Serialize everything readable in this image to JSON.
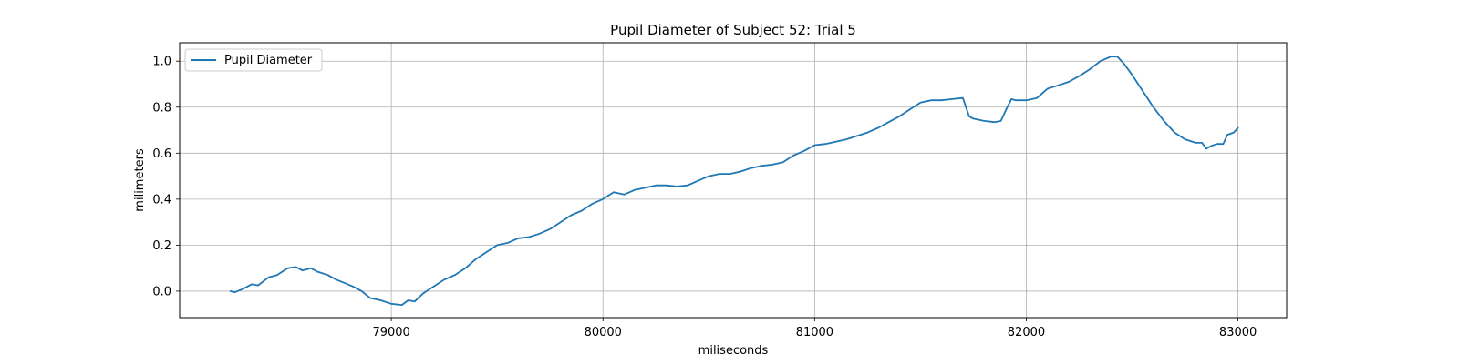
{
  "chart_data": {
    "type": "line",
    "title": "Pupil Diameter of Subject 52: Trial 5",
    "xlabel": "miliseconds",
    "ylabel": "milimeters",
    "xlim": [
      78000,
      83230
    ],
    "ylim": [
      -0.115,
      1.08
    ],
    "xticks": [
      79000,
      80000,
      81000,
      82000,
      83000
    ],
    "yticks": [
      0.0,
      0.2,
      0.4,
      0.6,
      0.8,
      1.0
    ],
    "xtick_labels": [
      "79000",
      "80000",
      "81000",
      "82000",
      "83000"
    ],
    "ytick_labels": [
      "0.0",
      "0.2",
      "0.4",
      "0.6",
      "0.8",
      "1.0"
    ],
    "grid": true,
    "legend": "upper-left",
    "color": "#1f77b4",
    "series": [
      {
        "name": "Pupil Diameter",
        "points": [
          [
            78240,
            0.0
          ],
          [
            78260,
            -0.005
          ],
          [
            78300,
            0.01
          ],
          [
            78340,
            0.03
          ],
          [
            78370,
            0.025
          ],
          [
            78420,
            0.06
          ],
          [
            78460,
            0.07
          ],
          [
            78510,
            0.1
          ],
          [
            78550,
            0.105
          ],
          [
            78580,
            0.09
          ],
          [
            78620,
            0.1
          ],
          [
            78650,
            0.085
          ],
          [
            78700,
            0.07
          ],
          [
            78740,
            0.05
          ],
          [
            78780,
            0.035
          ],
          [
            78820,
            0.02
          ],
          [
            78860,
            0.0
          ],
          [
            78900,
            -0.03
          ],
          [
            78950,
            -0.04
          ],
          [
            79000,
            -0.055
          ],
          [
            79050,
            -0.06
          ],
          [
            79080,
            -0.04
          ],
          [
            79110,
            -0.045
          ],
          [
            79150,
            -0.01
          ],
          [
            79200,
            0.02
          ],
          [
            79250,
            0.05
          ],
          [
            79300,
            0.07
          ],
          [
            79350,
            0.1
          ],
          [
            79400,
            0.14
          ],
          [
            79450,
            0.17
          ],
          [
            79500,
            0.2
          ],
          [
            79550,
            0.21
          ],
          [
            79600,
            0.23
          ],
          [
            79650,
            0.235
          ],
          [
            79700,
            0.25
          ],
          [
            79750,
            0.27
          ],
          [
            79800,
            0.3
          ],
          [
            79850,
            0.33
          ],
          [
            79900,
            0.35
          ],
          [
            79950,
            0.38
          ],
          [
            80000,
            0.4
          ],
          [
            80050,
            0.43
          ],
          [
            80100,
            0.42
          ],
          [
            80150,
            0.44
          ],
          [
            80200,
            0.45
          ],
          [
            80250,
            0.46
          ],
          [
            80300,
            0.46
          ],
          [
            80350,
            0.455
          ],
          [
            80400,
            0.46
          ],
          [
            80450,
            0.48
          ],
          [
            80500,
            0.5
          ],
          [
            80550,
            0.51
          ],
          [
            80600,
            0.51
          ],
          [
            80650,
            0.52
          ],
          [
            80700,
            0.535
          ],
          [
            80750,
            0.545
          ],
          [
            80800,
            0.55
          ],
          [
            80850,
            0.56
          ],
          [
            80900,
            0.59
          ],
          [
            80950,
            0.61
          ],
          [
            81000,
            0.635
          ],
          [
            81050,
            0.64
          ],
          [
            81100,
            0.65
          ],
          [
            81150,
            0.66
          ],
          [
            81200,
            0.675
          ],
          [
            81250,
            0.69
          ],
          [
            81300,
            0.71
          ],
          [
            81350,
            0.735
          ],
          [
            81400,
            0.76
          ],
          [
            81450,
            0.79
          ],
          [
            81500,
            0.82
          ],
          [
            81550,
            0.83
          ],
          [
            81600,
            0.83
          ],
          [
            81650,
            0.835
          ],
          [
            81700,
            0.84
          ],
          [
            81730,
            0.76
          ],
          [
            81750,
            0.75
          ],
          [
            81800,
            0.74
          ],
          [
            81850,
            0.735
          ],
          [
            81880,
            0.74
          ],
          [
            81910,
            0.8
          ],
          [
            81930,
            0.835
          ],
          [
            81950,
            0.83
          ],
          [
            82000,
            0.83
          ],
          [
            82050,
            0.84
          ],
          [
            82100,
            0.88
          ],
          [
            82150,
            0.895
          ],
          [
            82200,
            0.91
          ],
          [
            82250,
            0.935
          ],
          [
            82300,
            0.965
          ],
          [
            82350,
            1.0
          ],
          [
            82400,
            1.02
          ],
          [
            82430,
            1.02
          ],
          [
            82460,
            0.99
          ],
          [
            82500,
            0.94
          ],
          [
            82550,
            0.87
          ],
          [
            82600,
            0.8
          ],
          [
            82650,
            0.74
          ],
          [
            82700,
            0.69
          ],
          [
            82750,
            0.66
          ],
          [
            82800,
            0.645
          ],
          [
            82830,
            0.645
          ],
          [
            82850,
            0.62
          ],
          [
            82870,
            0.63
          ],
          [
            82900,
            0.64
          ],
          [
            82930,
            0.64
          ],
          [
            82950,
            0.68
          ],
          [
            82980,
            0.69
          ],
          [
            83000,
            0.71
          ]
        ]
      }
    ]
  }
}
